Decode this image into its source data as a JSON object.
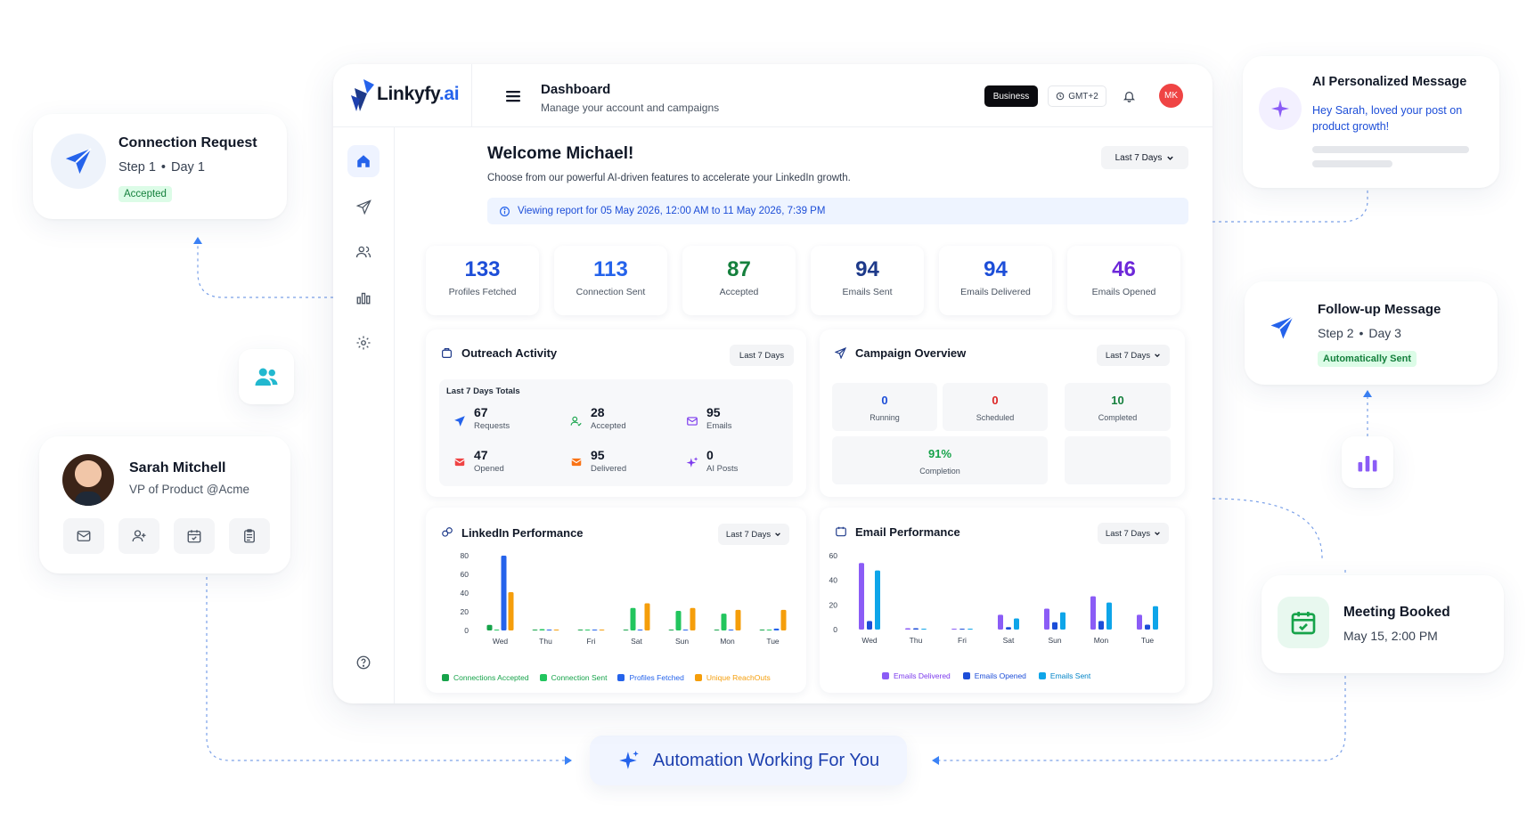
{
  "brand": {
    "name_main": "Linkyfy",
    "name_suffix": ".ai"
  },
  "header": {
    "title": "Dashboard",
    "subtitle": "Manage your account and campaigns",
    "plan_badge": "Business",
    "timezone": "GMT+2",
    "avatar_initials": "MK"
  },
  "welcome": {
    "title": "Welcome Michael!",
    "subtitle": "Choose from our powerful AI-driven features to accelerate your LinkedIn growth.",
    "report_range": "Viewing report for 05 May 2026, 12:00 AM to 11 May 2026, 7:39 PM",
    "range_select": "Last 7 Days"
  },
  "stats": [
    {
      "value": "133",
      "label": "Profiles Fetched",
      "color": "#1d4ed8"
    },
    {
      "value": "113",
      "label": "Connection Sent",
      "color": "#2563eb"
    },
    {
      "value": "87",
      "label": "Accepted",
      "color": "#15803d"
    },
    {
      "value": "94",
      "label": "Emails Sent",
      "color": "#1e3a8a"
    },
    {
      "value": "94",
      "label": "Emails Delivered",
      "color": "#1d4ed8"
    },
    {
      "value": "46",
      "label": "Emails Opened",
      "color": "#6d28d9"
    }
  ],
  "outreach": {
    "title": "Outreach Activity",
    "range": "Last 7 Days",
    "totals_label": "Last 7 Days Totals",
    "items": [
      {
        "value": "67",
        "label": "Requests"
      },
      {
        "value": "28",
        "label": "Accepted"
      },
      {
        "value": "95",
        "label": "Emails"
      },
      {
        "value": "47",
        "label": "Opened"
      },
      {
        "value": "95",
        "label": "Delivered"
      },
      {
        "value": "0",
        "label": "AI Posts"
      }
    ]
  },
  "campaign": {
    "title": "Campaign Overview",
    "range": "Last 7 Days",
    "cells": [
      {
        "value": "0",
        "label": "Running",
        "color": "#1d4ed8"
      },
      {
        "value": "0",
        "label": "Scheduled",
        "color": "#dc2626"
      },
      {
        "value": "10",
        "label": "Completed",
        "color": "#15803d"
      },
      {
        "value": "91%",
        "label": "Completion",
        "color": "#16a34a"
      }
    ]
  },
  "linkedin_perf": {
    "title": "LinkedIn Performance",
    "range": "Last 7 Days",
    "legend": [
      "Connections Accepted",
      "Connection Sent",
      "Profiles Fetched",
      "Unique ReachOuts"
    ]
  },
  "email_perf": {
    "title": "Email Performance",
    "range": "Last 7 Days",
    "legend": [
      "Emails Delivered",
      "Emails Opened",
      "Emails Sent"
    ]
  },
  "chart_data": [
    {
      "type": "bar",
      "title": "LinkedIn Performance",
      "categories": [
        "Wed",
        "Thu",
        "Fri",
        "Sat",
        "Sun",
        "Mon",
        "Tue"
      ],
      "ylim": [
        0,
        80
      ],
      "yticks": [
        0,
        20,
        40,
        60,
        80
      ],
      "series": [
        {
          "name": "Connections Accepted",
          "color": "#16a34a",
          "values": [
            6,
            0,
            0,
            0,
            0,
            0,
            0
          ]
        },
        {
          "name": "Connection Sent",
          "color": "#22c55e",
          "values": [
            0,
            1,
            0,
            24,
            21,
            18,
            0
          ]
        },
        {
          "name": "Profiles Fetched",
          "color": "#2563eb",
          "values": [
            80,
            0,
            0,
            0,
            0,
            0,
            2
          ]
        },
        {
          "name": "Unique ReachOuts",
          "color": "#f59e0b",
          "values": [
            41,
            0,
            0,
            29,
            24,
            22,
            22
          ]
        }
      ]
    },
    {
      "type": "bar",
      "title": "Email Performance",
      "categories": [
        "Wed",
        "Thu",
        "Fri",
        "Sat",
        "Sun",
        "Mon",
        "Tue"
      ],
      "ylim": [
        0,
        60
      ],
      "yticks": [
        0,
        20,
        40,
        60
      ],
      "series": [
        {
          "name": "Emails Delivered",
          "color": "#8b5cf6",
          "values": [
            54,
            1,
            0,
            12,
            17,
            27,
            12
          ]
        },
        {
          "name": "Emails Opened",
          "color": "#1d4ed8",
          "values": [
            7,
            1,
            0,
            2,
            6,
            7,
            4
          ]
        },
        {
          "name": "Emails Sent",
          "color": "#0ea5e9",
          "values": [
            48,
            0,
            0,
            9,
            14,
            22,
            19
          ]
        }
      ]
    }
  ],
  "float": {
    "connection": {
      "title": "Connection Request",
      "step": "Step 1",
      "day": "Day 1",
      "status": "Accepted"
    },
    "ai_message": {
      "title": "AI Personalized Message",
      "text": "Hey Sarah, loved your post on product growth!"
    },
    "followup": {
      "title": "Follow-up Message",
      "step": "Step 2",
      "day": "Day 3",
      "status": "Automatically Sent"
    },
    "profile": {
      "name": "Sarah Mitchell",
      "role": "VP of Product @Acme"
    },
    "meeting": {
      "title": "Meeting Booked",
      "date": "May 15, 2:00 PM"
    },
    "automation": {
      "text": "Automation Working For You"
    }
  }
}
